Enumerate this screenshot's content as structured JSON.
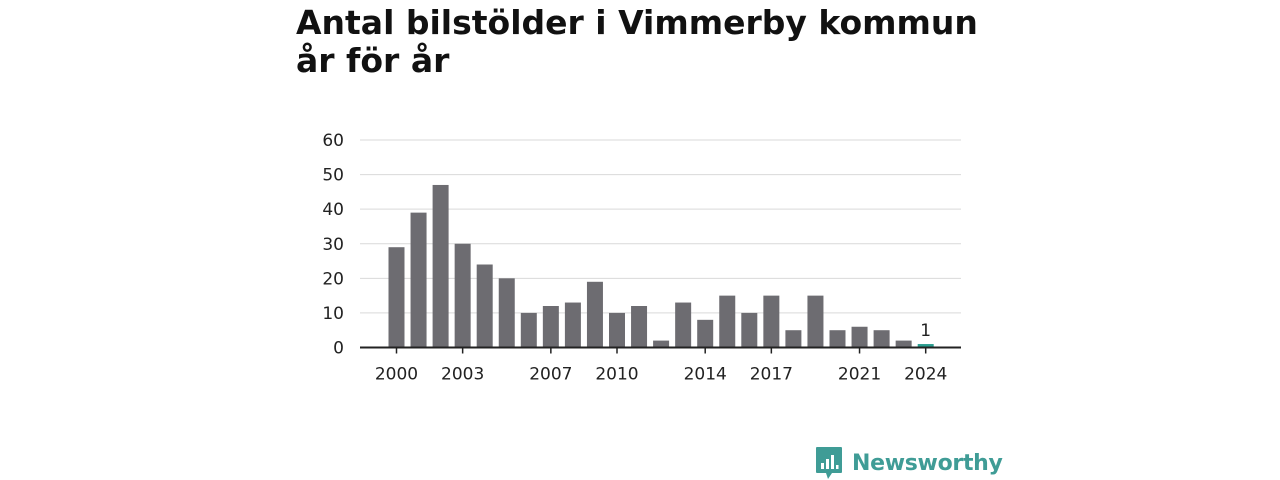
{
  "title": "Antal bilstölder i Vimmerby kommun år för år",
  "brand": {
    "name": "Newsworthy",
    "icon": "newsworthy-logo-icon",
    "color": "#3f9c96"
  },
  "chart_data": {
    "type": "bar",
    "title": "Antal bilstölder i Vimmerby kommun år för år",
    "xlabel": "",
    "ylabel": "",
    "categories": [
      "2000",
      "2001",
      "2002",
      "2003",
      "2004",
      "2005",
      "2006",
      "2007",
      "2008",
      "2009",
      "2010",
      "2011",
      "2012",
      "2013",
      "2014",
      "2015",
      "2016",
      "2017",
      "2018",
      "2019",
      "2020",
      "2021",
      "2022",
      "2023",
      "2024"
    ],
    "values": [
      29,
      39,
      47,
      30,
      24,
      20,
      10,
      12,
      13,
      19,
      10,
      12,
      2,
      13,
      8,
      15,
      10,
      15,
      5,
      15,
      5,
      6,
      5,
      2,
      1
    ],
    "x_tick_labels": [
      "2000",
      "2003",
      "2007",
      "2010",
      "2014",
      "2017",
      "2021",
      "2024"
    ],
    "y_ticks": [
      0,
      10,
      20,
      30,
      40,
      50,
      60
    ],
    "ylim": [
      0,
      60
    ],
    "grid": "horizontal",
    "bar_color": "#6d6c71",
    "highlight_color": "#2a9d8f",
    "highlight_category": "2024",
    "data_labels": [
      {
        "category": "2024",
        "text": "1"
      }
    ]
  }
}
